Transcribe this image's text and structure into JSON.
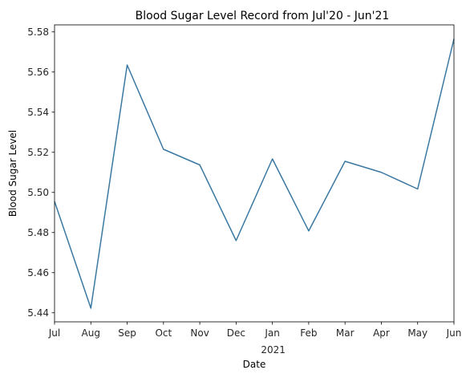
{
  "chart_data": {
    "type": "line",
    "title": "Blood Sugar Level Record from Jul'20 - Jun'21",
    "xlabel": "Date",
    "ylabel": "Blood Sugar Level",
    "x_ticks": [
      "Jul",
      "Aug",
      "Sep",
      "Oct",
      "Nov",
      "Dec",
      "Jan",
      "Feb",
      "Mar",
      "Apr",
      "May",
      "Jun"
    ],
    "year_label": "2021",
    "x": [
      "2020-07",
      "2020-08",
      "2020-09",
      "2020-10",
      "2020-11",
      "2020-12",
      "2021-01",
      "2021-02",
      "2021-03",
      "2021-04",
      "2021-05",
      "2021-06"
    ],
    "y_ticks": [
      5.44,
      5.46,
      5.48,
      5.5,
      5.52,
      5.54,
      5.56,
      5.58
    ],
    "ylim": [
      5.4355,
      5.5835
    ],
    "series": [
      {
        "color": "#3a78a1",
        "values": [
          5.4955,
          5.4423,
          5.5635,
          5.5215,
          5.5137,
          5.476,
          5.5167,
          5.4808,
          5.5155,
          5.51,
          5.5017,
          5.5765
        ]
      }
    ],
    "grid": false,
    "legend": "none"
  }
}
